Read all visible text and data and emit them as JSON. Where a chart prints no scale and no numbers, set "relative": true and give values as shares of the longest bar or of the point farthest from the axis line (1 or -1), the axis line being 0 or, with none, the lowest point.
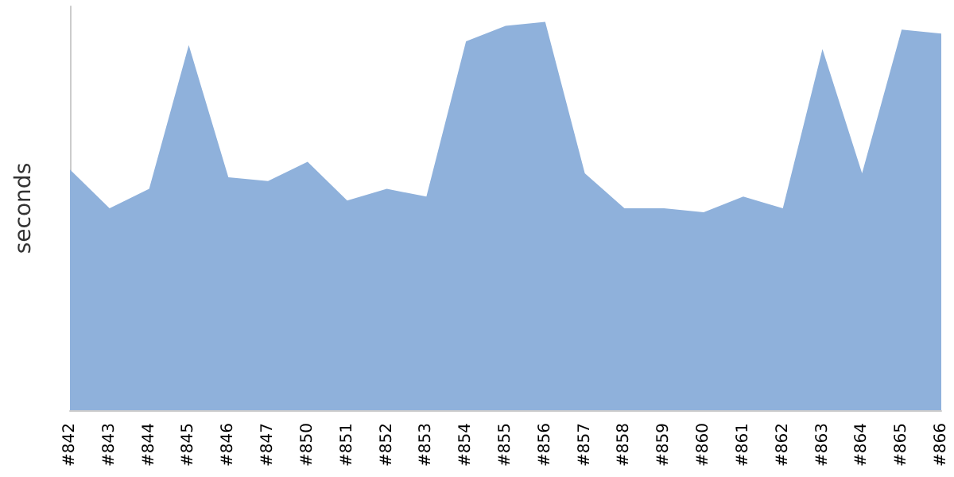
{
  "chart_data": {
    "type": "area",
    "ylabel": "seconds",
    "relative": true,
    "categories": [
      "#842",
      "#843",
      "#844",
      "#845",
      "#846",
      "#847",
      "#850",
      "#851",
      "#852",
      "#853",
      "#854",
      "#855",
      "#856",
      "#857",
      "#858",
      "#859",
      "#860",
      "#861",
      "#862",
      "#863",
      "#864",
      "#865",
      "#866"
    ],
    "series": [
      {
        "color": "#8fb1db",
        "values": [
          0.62,
          0.52,
          0.57,
          0.94,
          0.6,
          0.59,
          0.64,
          0.54,
          0.57,
          0.55,
          0.95,
          0.99,
          1,
          0.61,
          0.52,
          0.52,
          0.51,
          0.55,
          0.52,
          0.93,
          0.61,
          0.98,
          0.97
        ]
      }
    ],
    "grid": false
  }
}
